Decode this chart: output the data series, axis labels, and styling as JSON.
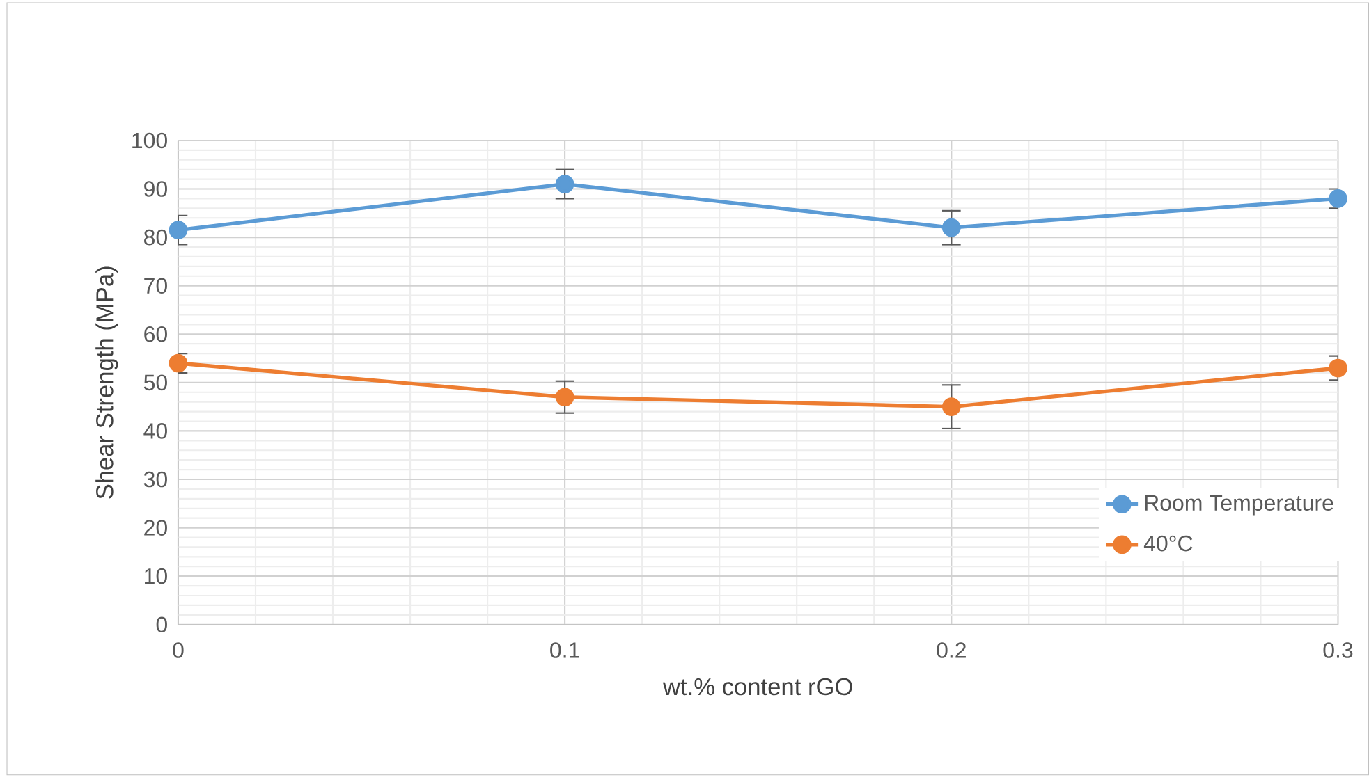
{
  "chart_data": {
    "type": "line",
    "xlabel": "wt.% content rGO",
    "ylabel": "Shear Strength (MPa)",
    "x": [
      0,
      0.1,
      0.2,
      0.3
    ],
    "series": [
      {
        "name": "Room Temperature",
        "color": "#5b9bd5",
        "values": [
          81.5,
          91,
          82,
          88
        ],
        "errors": [
          3,
          3,
          3.5,
          2
        ]
      },
      {
        "name": "40°C",
        "color": "#ed7d31",
        "values": [
          54,
          47,
          45,
          53
        ],
        "errors": [
          2,
          3.3,
          4.5,
          2.5
        ]
      }
    ],
    "xlim": [
      0,
      0.3
    ],
    "xticks": [
      0,
      0.1,
      0.2,
      0.3
    ],
    "ylim": [
      0,
      100
    ],
    "yticks": [
      0,
      10,
      20,
      30,
      40,
      50,
      60,
      70,
      80,
      90,
      100
    ],
    "grid": true,
    "legend": "bottom right",
    "marker": "circle",
    "line_style": "solid"
  }
}
